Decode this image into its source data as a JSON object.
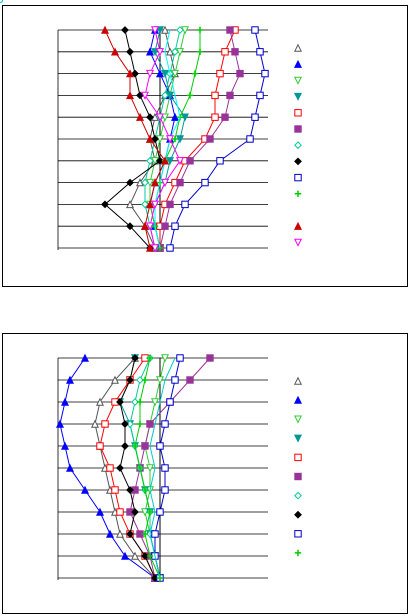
{
  "chart_data": [
    {
      "type": "line",
      "orientation": "horizontal",
      "legend": "right",
      "grid": true,
      "categories": [
        null,
        null,
        null,
        null,
        null,
        null,
        null,
        null,
        null,
        null,
        null
      ],
      "xlim": [
        -102,
        108
      ],
      "ylim": [
        10,
        0
      ],
      "yticks": [
        0,
        1,
        2,
        3,
        4,
        5,
        6,
        7,
        8,
        9,
        10
      ],
      "series": [
        {
          "marker": "triangle-open",
          "color": "#555555",
          "values": [
            5,
            10,
            15,
            5,
            -5,
            -10,
            -5,
            -20,
            -30,
            -15,
            -5
          ]
        },
        {
          "marker": "triangle",
          "color": "#0000ff",
          "values": [
            -5,
            -10,
            0,
            10,
            15,
            10,
            5,
            -5,
            -10,
            -5,
            0
          ]
        },
        {
          "marker": "triangle-down-open",
          "color": "#33cc33",
          "values": [
            25,
            20,
            15,
            10,
            5,
            0,
            -5,
            -10,
            -10,
            -5,
            0
          ]
        },
        {
          "marker": "triangle-down",
          "color": "#009999",
          "values": [
            0,
            -5,
            5,
            10,
            25,
            20,
            10,
            5,
            -5,
            -5,
            0
          ]
        },
        {
          "marker": "square-open",
          "color": "#ff0000",
          "values": [
            75,
            65,
            60,
            55,
            55,
            45,
            25,
            15,
            5,
            0,
            0
          ]
        },
        {
          "marker": "square",
          "color": "#993399",
          "values": [
            70,
            75,
            80,
            70,
            65,
            50,
            30,
            20,
            10,
            5,
            0
          ]
        },
        {
          "marker": "diamond-open",
          "color": "#00cc99",
          "values": [
            20,
            15,
            10,
            5,
            0,
            -5,
            -10,
            -15,
            -15,
            -10,
            -5
          ]
        },
        {
          "marker": "diamond",
          "color": "#000000",
          "values": [
            -35,
            -30,
            -25,
            -20,
            -10,
            -5,
            0,
            -30,
            -55,
            -30,
            -10
          ]
        },
        {
          "marker": "square-open",
          "color": "#0000cc",
          "values": [
            95,
            100,
            105,
            100,
            95,
            90,
            60,
            45,
            25,
            15,
            10
          ]
        },
        {
          "marker": "plus",
          "color": "#00cc00",
          "values": [
            40,
            40,
            35,
            30,
            20,
            15,
            5,
            0,
            -5,
            -5,
            0
          ]
        },
        {
          "marker": "circle-open",
          "color": "#00ffff",
          "values": [
            10,
            5,
            10,
            15,
            20,
            10,
            5,
            0,
            -5,
            -5,
            0
          ]
        },
        {
          "marker": "triangle",
          "color": "#cc0000",
          "values": [
            -55,
            -45,
            -30,
            -30,
            -20,
            -10,
            5,
            -5,
            -10,
            -15,
            -10
          ]
        },
        {
          "marker": "triangle-down-open",
          "color": "#ff00ff",
          "values": [
            -5,
            0,
            -10,
            -15,
            0,
            10,
            20,
            5,
            -5,
            -10,
            -5
          ]
        }
      ]
    },
    {
      "type": "line",
      "orientation": "horizontal",
      "legend": "right",
      "grid": true,
      "categories": [
        null,
        null,
        null,
        null,
        null,
        null,
        null,
        null,
        null,
        null,
        null
      ],
      "xlim": [
        -102,
        108
      ],
      "ylim": [
        10,
        0
      ],
      "yticks": [
        0,
        1,
        2,
        3,
        4,
        5,
        6,
        7,
        8,
        9,
        10
      ],
      "series": [
        {
          "marker": "triangle-open",
          "color": "#555555",
          "values": [
            -25,
            -45,
            -60,
            -65,
            -60,
            -55,
            -50,
            -45,
            -40,
            -25,
            -5
          ]
        },
        {
          "marker": "triangle",
          "color": "#0000ff",
          "values": [
            -75,
            -90,
            -95,
            -100,
            -95,
            -90,
            -75,
            -60,
            -50,
            -35,
            -5
          ]
        },
        {
          "marker": "triangle-down-open",
          "color": "#33cc33",
          "values": [
            5,
            0,
            -5,
            -10,
            -15,
            -10,
            -10,
            -15,
            -10,
            -5,
            0
          ]
        },
        {
          "marker": "triangle-down",
          "color": "#009999",
          "values": [
            -25,
            -30,
            -40,
            -30,
            -25,
            -20,
            -15,
            -10,
            -10,
            -5,
            0
          ]
        },
        {
          "marker": "square-open",
          "color": "#ff0000",
          "values": [
            -15,
            -30,
            -45,
            -55,
            -60,
            -50,
            -45,
            -40,
            -30,
            -15,
            -5
          ]
        },
        {
          "marker": "square",
          "color": "#993399",
          "values": [
            50,
            30,
            10,
            -10,
            -15,
            -20,
            -25,
            -30,
            -20,
            -10,
            -5
          ]
        },
        {
          "marker": "diamond-open",
          "color": "#00cc99",
          "values": [
            -10,
            -20,
            -25,
            -30,
            -25,
            -20,
            -15,
            -10,
            -10,
            -5,
            0
          ]
        },
        {
          "marker": "diamond",
          "color": "#000000",
          "values": [
            -25,
            -30,
            -40,
            -35,
            -35,
            -40,
            -30,
            -25,
            -30,
            -15,
            -5
          ]
        },
        {
          "marker": "square-open",
          "color": "#0000cc",
          "values": [
            20,
            15,
            10,
            5,
            0,
            5,
            5,
            0,
            -5,
            -5,
            0
          ]
        },
        {
          "marker": "plus",
          "color": "#00cc00",
          "values": [
            -10,
            -15,
            -20,
            -20,
            -25,
            -20,
            -15,
            -10,
            -15,
            -10,
            0
          ]
        },
        {
          "marker": "circle-open",
          "color": "#00cccc",
          "values": [
            15,
            5,
            0,
            -5,
            -10,
            -5,
            -10,
            -5,
            -10,
            -5,
            0
          ]
        }
      ]
    }
  ]
}
